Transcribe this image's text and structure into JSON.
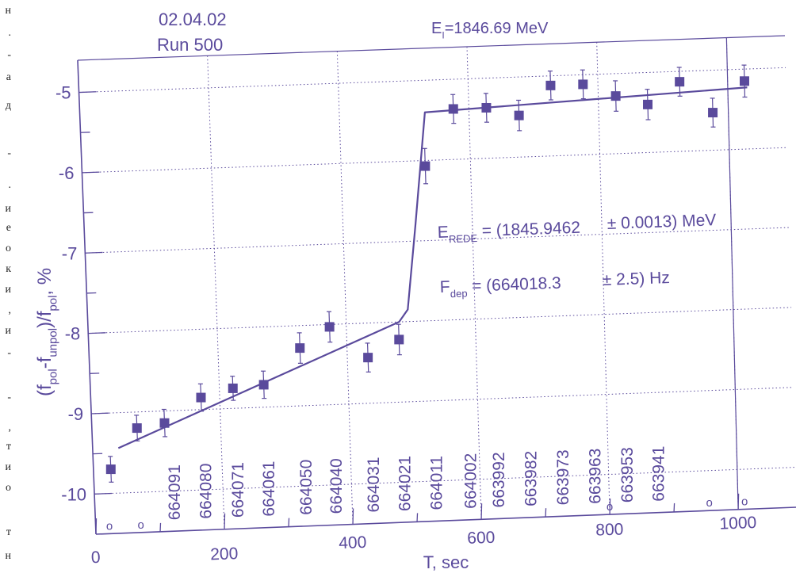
{
  "sidebar_fragment": [
    "н",
    ".",
    "-",
    "а",
    "д",
    "-",
    ".",
    "и",
    "е",
    "о",
    "к",
    "и",
    ",",
    "и",
    "-",
    "-",
    ",",
    "т",
    "и",
    "о",
    "т",
    "н"
  ],
  "chart_data": {
    "type": "scatter",
    "date_label": "02.04.02",
    "run_label": "Run  500",
    "beam_energy": {
      "prefix": "E",
      "sub": "I",
      "text": "=1846.69 MeV"
    },
    "xlabel": "T, sec",
    "ylabel": {
      "open": "(f",
      "sub1": "pol",
      "mid": "-f",
      "sub2": "unpol",
      "close": ")/f",
      "sub3": "pol",
      "tail": ", %"
    },
    "xlim": [
      0,
      1090
    ],
    "ylim": [
      -10.5,
      -4.6
    ],
    "x_ticks": [
      0,
      200,
      400,
      600,
      800,
      1000
    ],
    "y_ticks": [
      -10,
      -9,
      -8,
      -7,
      -6,
      -5
    ],
    "grid": true,
    "series": [
      {
        "x": [
          27,
          70,
          113,
          171,
          221,
          269,
          327,
          374,
          432,
          481,
          530,
          576,
          627,
          677,
          727,
          777,
          827,
          876,
          926,
          976,
          1026
        ],
        "y": [
          -9.7,
          -9.2,
          -9.15,
          -8.85,
          -8.75,
          -8.72,
          -8.28,
          -8.03,
          -8.43,
          -8.22,
          -6.07,
          -5.37,
          -5.37,
          -5.48,
          -5.12,
          -5.12,
          -5.28,
          -5.4,
          -5.13,
          -5.53,
          -5.15
        ],
        "yerr": [
          0.16,
          0.16,
          0.17,
          0.17,
          0.15,
          0.17,
          0.19,
          0.19,
          0.18,
          0.19,
          0.22,
          0.18,
          0.18,
          0.19,
          0.18,
          0.18,
          0.19,
          0.19,
          0.18,
          0.18,
          0.2
        ]
      }
    ],
    "fit_line": {
      "x": [
        40,
        482,
        496,
        512,
        532,
        1030
      ],
      "y": [
        -9.44,
        -8.0,
        -7.85,
        -6.8,
        -5.4,
        -5.23
      ]
    },
    "results": [
      {
        "prefix": "E",
        "sub": "REDE",
        "value": "= (1845.9462",
        "error": "± 0.0013) MeV"
      },
      {
        "prefix": "F",
        "sub": "dep",
        "value": "= (664018.3",
        "error": "± 2.5) Hz"
      }
    ],
    "frequency_labels": [
      {
        "x": 122,
        "text": "664091"
      },
      {
        "x": 171,
        "text": "664080"
      },
      {
        "x": 221,
        "text": "664071"
      },
      {
        "x": 269,
        "text": "664061"
      },
      {
        "x": 327,
        "text": "664050"
      },
      {
        "x": 374,
        "text": "664040"
      },
      {
        "x": 432,
        "text": "664031"
      },
      {
        "x": 481,
        "text": "664021"
      },
      {
        "x": 530,
        "text": "664011"
      },
      {
        "x": 583,
        "text": "664002"
      },
      {
        "x": 627,
        "text": "663992"
      },
      {
        "x": 677,
        "text": "663982"
      },
      {
        "x": 727,
        "text": "663973"
      },
      {
        "x": 777,
        "text": "663963"
      },
      {
        "x": 827,
        "text": "663953"
      },
      {
        "x": 876,
        "text": "663941"
      }
    ],
    "bottom_markers": {
      "glyph": "o",
      "x": [
        21,
        70,
        800,
        955,
        1010
      ]
    },
    "colors": {
      "ink": "#5a4a9c",
      "marker": "#5a4a9c",
      "grid": "#5a4a9c"
    }
  }
}
